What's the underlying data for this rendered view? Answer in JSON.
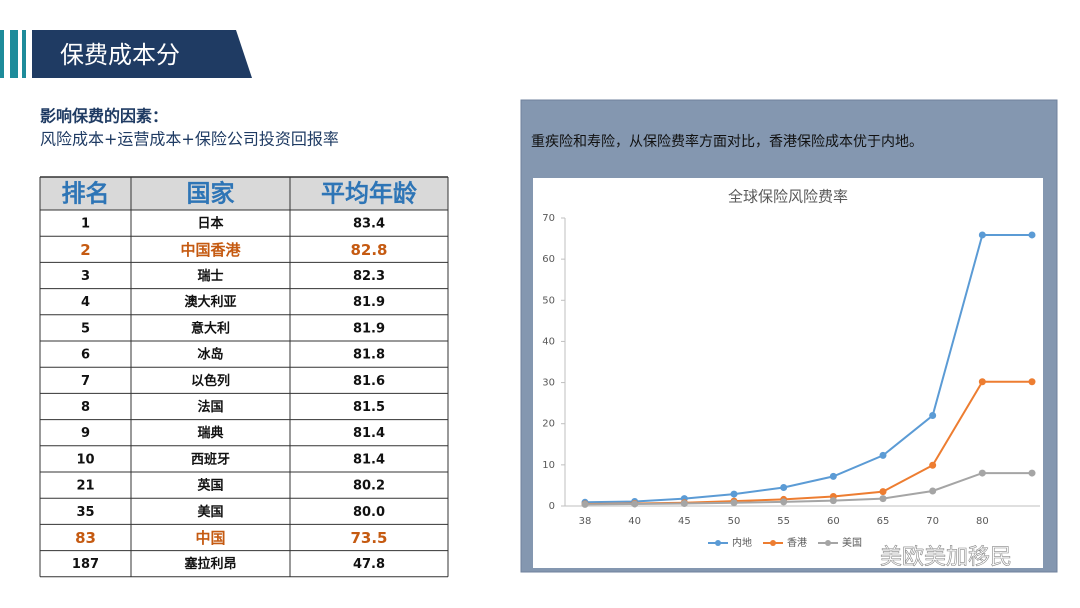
{
  "header": {
    "title": "保费成本分"
  },
  "intro": {
    "heading": "影响保费的因素：",
    "text": "风险成本+运营成本+保险公司投资回报率"
  },
  "table": {
    "columns": [
      "排名",
      "国家",
      "平均年龄"
    ],
    "rows": [
      [
        "1",
        "日本",
        "83.4"
      ],
      [
        "2",
        "中国香港",
        "82.8"
      ],
      [
        "3",
        "瑞士",
        "82.3"
      ],
      [
        "4",
        "澳大利亚",
        "81.9"
      ],
      [
        "5",
        "意大利",
        "81.9"
      ],
      [
        "6",
        "冰岛",
        "81.8"
      ],
      [
        "7",
        "以色列",
        "81.6"
      ],
      [
        "8",
        "法国",
        "81.5"
      ],
      [
        "9",
        "瑞典",
        "81.4"
      ],
      [
        "10",
        "西班牙",
        "81.4"
      ],
      [
        "21",
        "英国",
        "80.2"
      ],
      [
        "35",
        "美国",
        "80.0"
      ],
      [
        "83",
        "中国",
        "73.5"
      ],
      [
        "187",
        "塞拉利昂",
        "47.8"
      ]
    ],
    "highlight_rows": [
      1,
      12
    ],
    "highlight_color": "#c55a11"
  },
  "panel": {
    "caption": "重疾险和寿险，从保险费率方面对比，香港保险成本优于内地。"
  },
  "chart_data": {
    "type": "line",
    "title": "全球保险风险费率",
    "categories": [
      "38",
      "40",
      "45",
      "50",
      "55",
      "60",
      "65",
      "70",
      "80",
      null
    ],
    "series": [
      {
        "name": "内地",
        "color": "#5b9bd5",
        "values": [
          0.9,
          1.1,
          1.8,
          2.9,
          4.5,
          7.2,
          12.3,
          21.99,
          65.88,
          65.88
        ]
      },
      {
        "name": "香港",
        "color": "#ed7d31",
        "values": [
          0.5,
          0.6,
          0.8,
          1.2,
          1.6,
          2.3,
          3.5,
          9.91,
          30.2,
          30.2
        ]
      },
      {
        "name": "美国",
        "color": "#a5a5a5",
        "values": [
          0.4,
          0.5,
          0.6,
          0.8,
          1.0,
          1.3,
          1.8,
          3.65,
          8.0,
          8.0
        ]
      }
    ],
    "ylim": [
      0,
      70
    ],
    "yticks": [
      0,
      10,
      20,
      30,
      40,
      50,
      60,
      70
    ],
    "legend": "bottom"
  },
  "watermark": "美欧美加移民"
}
